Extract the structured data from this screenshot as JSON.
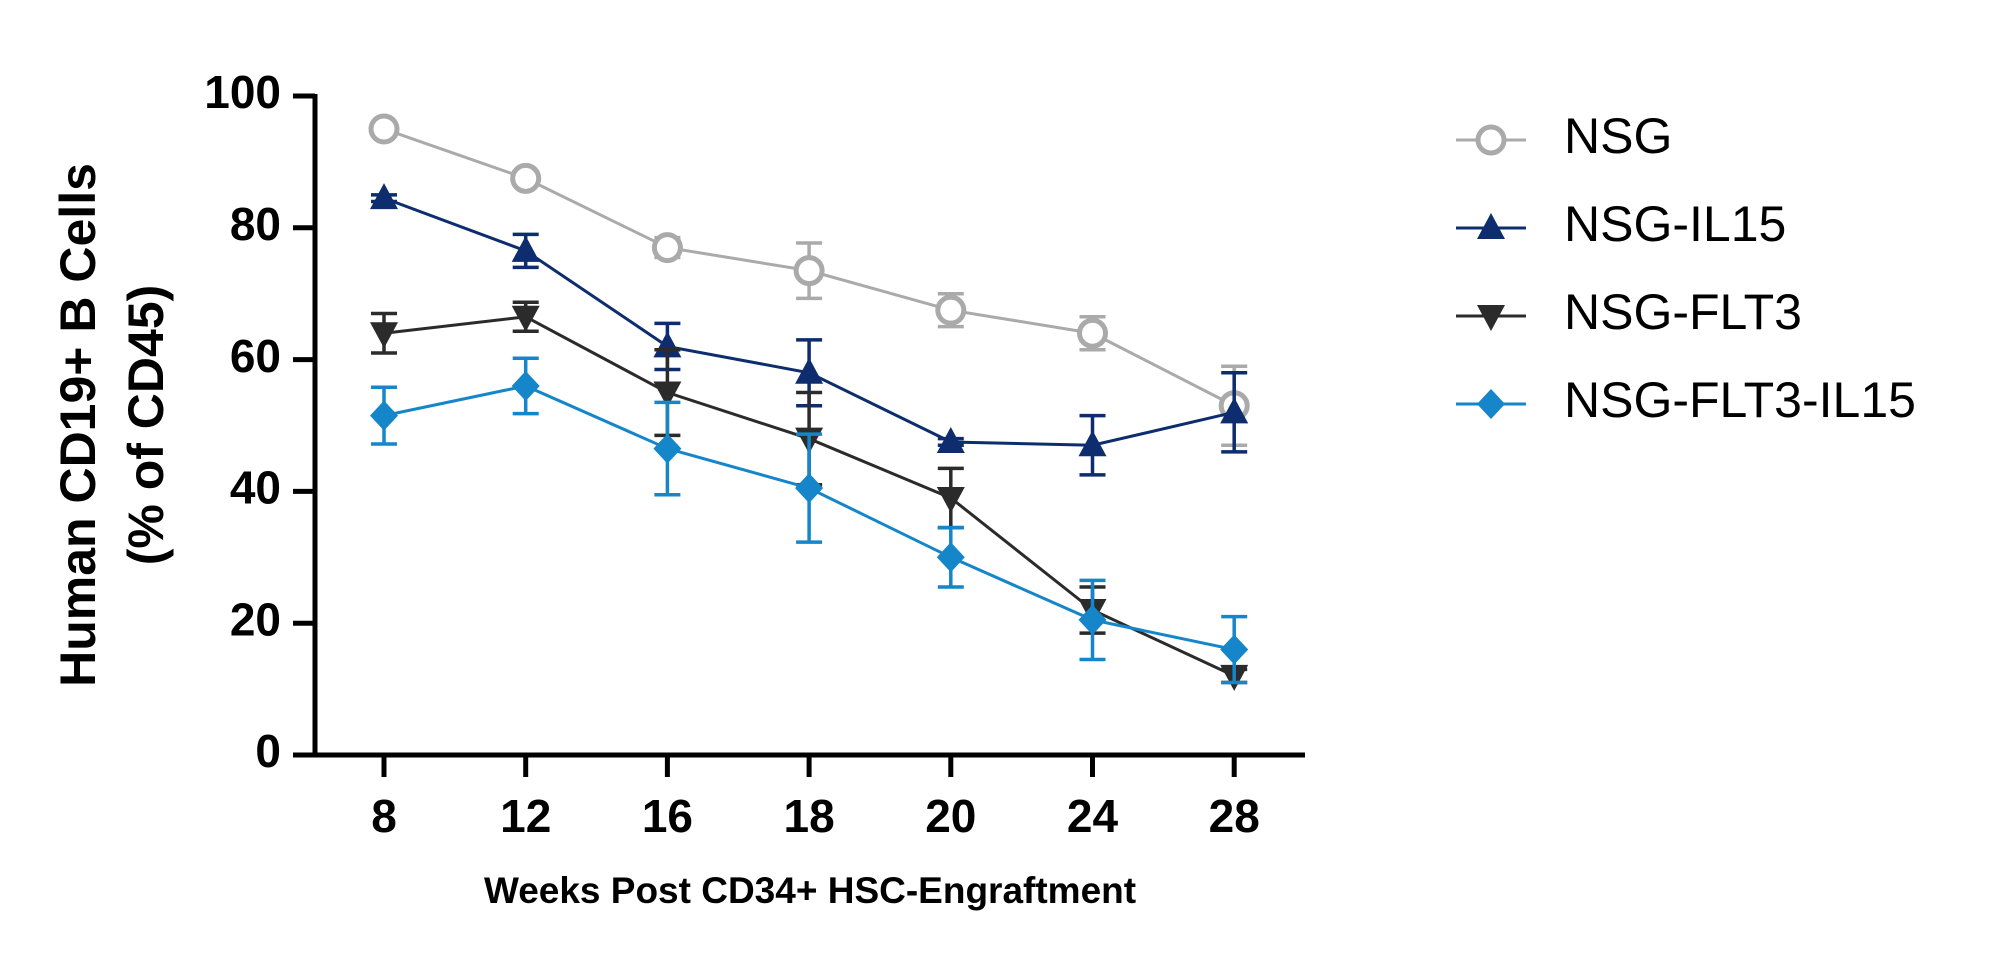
{
  "chart_data": {
    "type": "line",
    "x_label": "Weeks Post CD34+ HSC-Engraftment",
    "y_label": [
      "Human CD19+ B Cells",
      "(% of CD45)"
    ],
    "categories": [
      "8",
      "12",
      "16",
      "18",
      "20",
      "24",
      "28"
    ],
    "ylim": [
      0,
      100
    ],
    "yticks": [
      0,
      20,
      40,
      60,
      80,
      100
    ],
    "legend": "right",
    "series": [
      {
        "name": "NSG",
        "color": "#aaaaaa",
        "marker": "circle-open",
        "values": [
          95,
          87.5,
          77,
          73.5,
          67.5,
          64,
          53
        ],
        "errors": [
          0.5,
          0.5,
          1.5,
          4.2,
          2.5,
          2.5,
          6
        ]
      },
      {
        "name": "NSG-IL15",
        "color": "#0d2d6e",
        "marker": "triangle-up",
        "values": [
          84.5,
          76.5,
          62,
          58,
          47.5,
          47,
          52
        ],
        "errors": [
          0.5,
          2.5,
          3.5,
          5,
          0.5,
          4.5,
          6
        ]
      },
      {
        "name": "NSG-FLT3",
        "color": "#2b2b2b",
        "marker": "triangle-down",
        "values": [
          64,
          66.5,
          55,
          48,
          39,
          22,
          12
        ],
        "errors": [
          3,
          2.2,
          6.5,
          7,
          4.5,
          3.5,
          1
        ]
      },
      {
        "name": "NSG-FLT3-IL15",
        "color": "#1486c9",
        "marker": "diamond",
        "values": [
          51.5,
          56,
          46.5,
          40.5,
          30,
          20.5,
          16
        ],
        "errors": [
          4.3,
          4.2,
          7,
          8.2,
          4.5,
          6,
          5
        ]
      }
    ]
  }
}
